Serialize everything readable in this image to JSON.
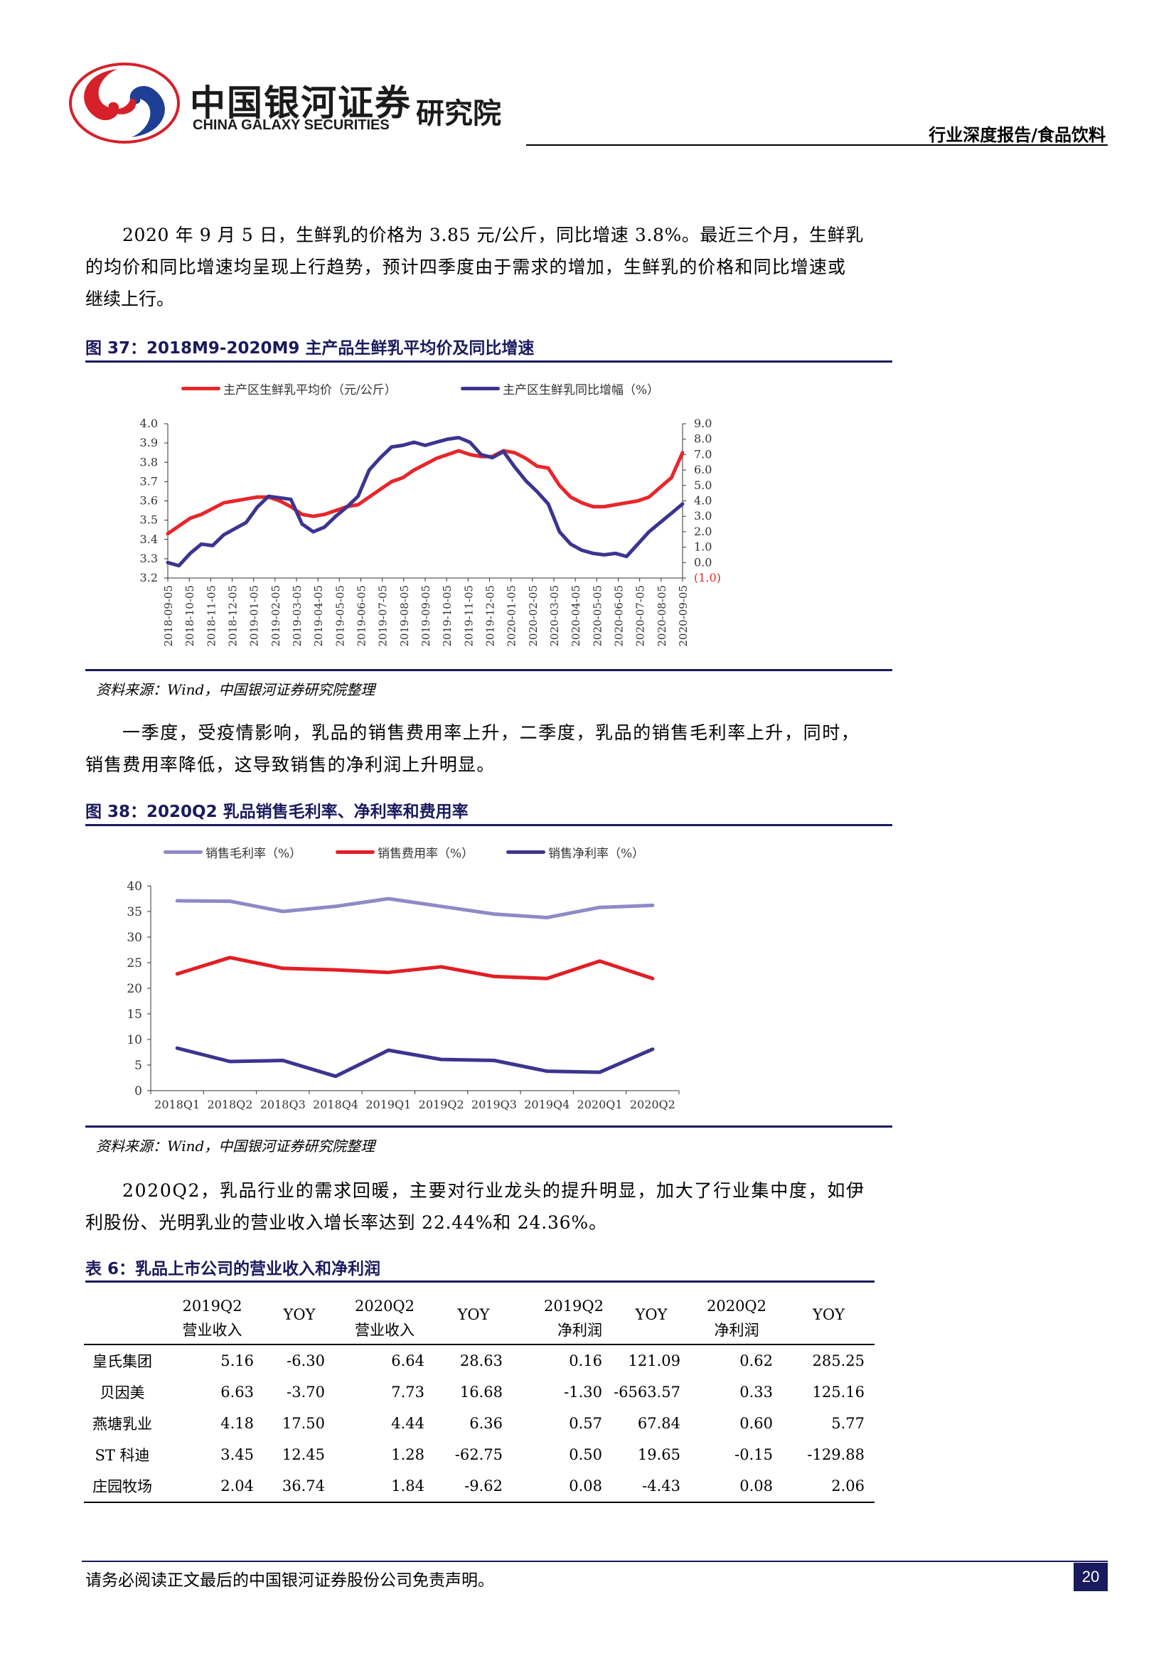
{
  "header": {
    "company_cn": "中国银河证券",
    "company_en": "CHINA GALAXY SECURITIES",
    "institute": "研究院",
    "report_tag": "行业深度报告/食品饮料"
  },
  "paragraphs": {
    "p1": [
      "2020 年 9 月 5 日，生鲜乳的价格为 3.85 元/公斤，同比增速 3.8%。最近三个月，生鲜乳",
      "的均价和同比增速均呈现上行趋势，预计四季度由于需求的增加，生鲜乳的价格和同比增速或",
      "继续上行。"
    ],
    "p2": [
      "一季度，受疫情影响，乳品的销售费用率上升，二季度，乳品的销售毛利率上升，同时，",
      "销售费用率降低，这导致销售的净利润上升明显。"
    ],
    "p3": [
      "2020Q2，乳品行业的需求回暖，主要对行业龙头的提升明显，加大了行业集中度，如伊",
      "利股份、光明乳业的营业收入增长率达到 22.44%和 24.36%。"
    ]
  },
  "fig37": {
    "title": "图 37：2018M9-2020M9 主产品生鲜乳平均价及同比增速",
    "source": "资料来源：Wind，中国银河证券研究院整理"
  },
  "fig38": {
    "title": "图 38：2020Q2 乳品销售毛利率、净利率和费用率",
    "source": "资料来源：Wind，中国银河证券研究院整理"
  },
  "chart_data": [
    {
      "type": "line",
      "colors": {
        "price": "#e8262b",
        "yoy": "#3b3590",
        "neg_label": "#e8262b"
      },
      "legend_position": "top",
      "x_tick_labels": [
        "2018-09-05",
        "2018-10-05",
        "2018-11-05",
        "2018-12-05",
        "2019-01-05",
        "2019-02-05",
        "2019-03-05",
        "2019-04-05",
        "2019-05-05",
        "2019-06-05",
        "2019-07-05",
        "2019-08-05",
        "2019-09-05",
        "2019-10-05",
        "2019-11-05",
        "2019-12-05",
        "2020-01-05",
        "2020-02-05",
        "2020-03-05",
        "2020-04-05",
        "2020-05-05",
        "2020-06-05",
        "2020-07-05",
        "2020-08-05",
        "2020-09-05"
      ],
      "y_left": {
        "ylim": [
          3.2,
          4.0
        ],
        "ticks": [
          "3.2",
          "3.3",
          "3.4",
          "3.5",
          "3.6",
          "3.7",
          "3.8",
          "3.9",
          "4.0"
        ]
      },
      "y_right": {
        "ylim": [
          -1.0,
          9.0
        ],
        "ticks": [
          "(1.0)",
          "0.0",
          "1.0",
          "2.0",
          "3.0",
          "4.0",
          "5.0",
          "6.0",
          "7.0",
          "8.0",
          "9.0"
        ]
      },
      "series": [
        {
          "name": "主产区生鲜乳平均价（元/公斤）",
          "axis": "left",
          "values": [
            3.43,
            3.47,
            3.51,
            3.53,
            3.56,
            3.59,
            3.6,
            3.61,
            3.62,
            3.62,
            3.6,
            3.57,
            3.53,
            3.52,
            3.53,
            3.55,
            3.57,
            3.58,
            3.62,
            3.66,
            3.7,
            3.72,
            3.76,
            3.79,
            3.82,
            3.84,
            3.86,
            3.84,
            3.83,
            3.83,
            3.86,
            3.85,
            3.82,
            3.78,
            3.77,
            3.68,
            3.62,
            3.59,
            3.57,
            3.57,
            3.58,
            3.59,
            3.6,
            3.62,
            3.67,
            3.72,
            3.85
          ]
        },
        {
          "name": "主产区生鲜乳同比增幅（%）",
          "axis": "right",
          "values": [
            0.0,
            -0.2,
            0.6,
            1.2,
            1.1,
            1.8,
            2.2,
            2.6,
            3.6,
            4.3,
            4.2,
            4.1,
            2.5,
            2.0,
            2.3,
            3.0,
            3.6,
            4.3,
            6.0,
            6.8,
            7.5,
            7.6,
            7.8,
            7.6,
            7.8,
            8.0,
            8.1,
            7.8,
            7.0,
            6.8,
            7.2,
            6.2,
            5.3,
            4.6,
            3.8,
            2.0,
            1.2,
            0.8,
            0.6,
            0.5,
            0.6,
            0.4,
            1.2,
            2.0,
            2.6,
            3.2,
            3.8
          ]
        }
      ]
    },
    {
      "type": "line",
      "legend_position": "top",
      "categories": [
        "2018Q1",
        "2018Q2",
        "2018Q3",
        "2018Q4",
        "2019Q1",
        "2019Q2",
        "2019Q3",
        "2019Q4",
        "2020Q1",
        "2020Q2"
      ],
      "ylim": [
        0,
        40
      ],
      "y_ticks": [
        "0",
        "5",
        "10",
        "15",
        "20",
        "25",
        "30",
        "35",
        "40"
      ],
      "series": [
        {
          "name": "销售毛利率（%）",
          "color": "#8e8ac6",
          "values": [
            37.1,
            37.0,
            35.0,
            36.0,
            37.5,
            36.0,
            34.5,
            33.8,
            35.8,
            36.2
          ]
        },
        {
          "name": "销售费用率（%）",
          "color": "#e31e24",
          "values": [
            22.8,
            26.0,
            23.9,
            23.6,
            23.1,
            24.2,
            22.3,
            21.9,
            25.3,
            21.9
          ]
        },
        {
          "name": "销售净利率（%）",
          "color": "#3b3590",
          "values": [
            8.3,
            5.7,
            5.9,
            2.8,
            7.9,
            6.1,
            5.9,
            3.8,
            3.6,
            8.1
          ]
        }
      ]
    }
  ],
  "table6": {
    "title": "表 6：乳品上市公司的营业收入和净利润",
    "header_top": [
      "2019Q2",
      "YOY",
      "2020Q2",
      "YOY",
      "2019Q2",
      "YOY",
      "2020Q2",
      "YOY"
    ],
    "header_sub": [
      "营业收入",
      "",
      "营业收入",
      "",
      "净利润",
      "",
      "净利润",
      ""
    ],
    "rows": [
      {
        "name": "皇氏集团",
        "cells": [
          "5.16",
          "-6.30",
          "6.64",
          "28.63",
          "0.16",
          "121.09",
          "0.62",
          "285.25"
        ]
      },
      {
        "name": "贝因美",
        "cells": [
          "6.63",
          "-3.70",
          "7.73",
          "16.68",
          "-1.30",
          "-6563.57",
          "0.33",
          "125.16"
        ]
      },
      {
        "name": "燕塘乳业",
        "cells": [
          "4.18",
          "17.50",
          "4.44",
          "6.36",
          "0.57",
          "67.84",
          "0.60",
          "5.77"
        ]
      },
      {
        "name": "ST 科迪",
        "cells": [
          "3.45",
          "12.45",
          "1.28",
          "-62.75",
          "0.50",
          "19.65",
          "-0.15",
          "-129.88"
        ]
      },
      {
        "name": "庄园牧场",
        "cells": [
          "2.04",
          "36.74",
          "1.84",
          "-9.62",
          "0.08",
          "-4.43",
          "0.08",
          "2.06"
        ]
      }
    ]
  },
  "footer": {
    "disclaimer": "请务必阅读正文最后的中国银河证券股份公司免责声明。",
    "page": "20"
  }
}
